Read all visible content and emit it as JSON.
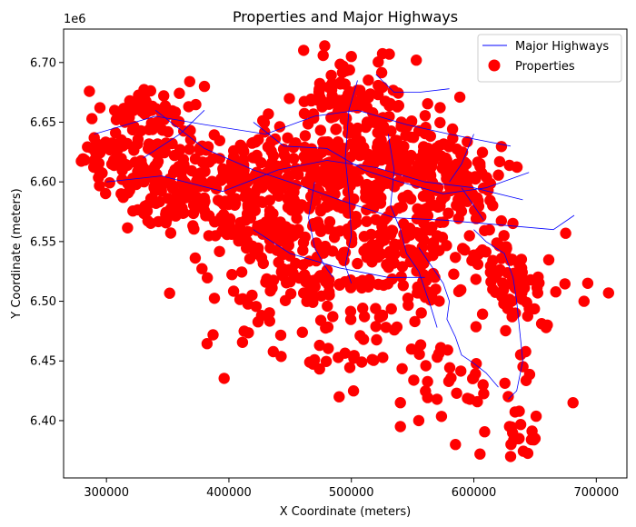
{
  "chart_data": {
    "type": "scatter",
    "title": "Properties and Major Highways",
    "xlabel": "X Coordinate (meters)",
    "ylabel": "Y Coordinate (meters)",
    "y_offset_label": "1e6",
    "xlim": [
      265000,
      725000
    ],
    "ylim": [
      6352000,
      6728000
    ],
    "x_ticks": [
      300000,
      400000,
      500000,
      600000,
      700000
    ],
    "x_tick_labels": [
      "300000",
      "400000",
      "500000",
      "600000",
      "700000"
    ],
    "y_ticks": [
      6400000,
      6450000,
      6500000,
      6550000,
      6600000,
      6650000,
      6700000
    ],
    "y_tick_labels": [
      "6.40",
      "6.45",
      "6.50",
      "6.55",
      "6.60",
      "6.65",
      "6.70"
    ],
    "grid": false,
    "legend_position": "top-right",
    "colors": {
      "properties": "#ff0000",
      "highways": "#0000ff"
    },
    "series": [
      {
        "name": "Major Highways",
        "kind": "line",
        "paths": [
          [
            [
              290000,
              6640000
            ],
            [
              340000,
              6655000
            ],
            [
              380000,
              6648000
            ],
            [
              430000,
              6640000
            ],
            [
              470000,
              6655000
            ],
            [
              505000,
              6660000
            ],
            [
              545000,
              6648000
            ],
            [
              580000,
              6640000
            ],
            [
              630000,
              6630000
            ]
          ],
          [
            [
              300000,
              6600000
            ],
            [
              345000,
              6605000
            ],
            [
              395000,
              6592000
            ],
            [
              440000,
              6610000
            ],
            [
              480000,
              6618000
            ],
            [
              520000,
              6612000
            ],
            [
              560000,
              6600000
            ],
            [
              600000,
              6595000
            ],
            [
              640000,
              6585000
            ]
          ],
          [
            [
              340000,
              6660000
            ],
            [
              380000,
              6628000
            ],
            [
              420000,
              6610000
            ],
            [
              455000,
              6598000
            ],
            [
              490000,
              6585000
            ],
            [
              535000,
              6570000
            ],
            [
              575000,
              6568000
            ],
            [
              610000,
              6565000
            ],
            [
              665000,
              6560000
            ],
            [
              682000,
              6572000
            ]
          ],
          [
            [
              420000,
              6650000
            ],
            [
              445000,
              6630000
            ],
            [
              480000,
              6628000
            ],
            [
              510000,
              6610000
            ],
            [
              540000,
              6600000
            ],
            [
              575000,
              6590000
            ],
            [
              610000,
              6595000
            ],
            [
              645000,
              6608000
            ]
          ],
          [
            [
              505000,
              6685000
            ],
            [
              498000,
              6660000
            ],
            [
              495000,
              6620000
            ],
            [
              498000,
              6590000
            ],
            [
              500000,
              6555000
            ],
            [
              495000,
              6530000
            ],
            [
              500000,
              6515000
            ]
          ],
          [
            [
              420000,
              6560000
            ],
            [
              450000,
              6540000
            ],
            [
              490000,
              6528000
            ],
            [
              530000,
              6520000
            ],
            [
              560000,
              6520000
            ]
          ],
          [
            [
              520000,
              6690000
            ],
            [
              535000,
              6675000
            ],
            [
              555000,
              6675000
            ],
            [
              580000,
              6678000
            ]
          ],
          [
            [
              530000,
              6640000
            ],
            [
              535000,
              6610000
            ],
            [
              532000,
              6580000
            ],
            [
              540000,
              6560000
            ],
            [
              545000,
              6540000
            ],
            [
              555000,
              6525000
            ],
            [
              560000,
              6510000
            ],
            [
              565000,
              6495000
            ],
            [
              570000,
              6478000
            ]
          ],
          [
            [
              555000,
              6545000
            ],
            [
              575000,
              6515000
            ],
            [
              580000,
              6500000
            ],
            [
              578000,
              6485000
            ],
            [
              585000,
              6470000
            ],
            [
              590000,
              6455000
            ],
            [
              600000,
              6448000
            ],
            [
              610000,
              6440000
            ],
            [
              620000,
              6428000
            ]
          ],
          [
            [
              600000,
              6560000
            ],
            [
              610000,
              6550000
            ],
            [
              625000,
              6540000
            ],
            [
              632000,
              6520000
            ],
            [
              635000,
              6500000
            ],
            [
              638000,
              6470000
            ],
            [
              640000,
              6450000
            ],
            [
              635000,
              6425000
            ],
            [
              628000,
              6418000
            ]
          ],
          [
            [
              590000,
              6595000
            ],
            [
              600000,
              6580000
            ],
            [
              608000,
              6568000
            ]
          ],
          [
            [
              470000,
              6600000
            ],
            [
              465000,
              6570000
            ],
            [
              470000,
              6545000
            ],
            [
              478000,
              6530000
            ],
            [
              485000,
              6520000
            ]
          ],
          [
            [
              380000,
              6660000
            ],
            [
              360000,
              6640000
            ],
            [
              330000,
              6620000
            ]
          ],
          [
            [
              600000,
              6640000
            ],
            [
              590000,
              6615000
            ],
            [
              580000,
              6600000
            ]
          ]
        ]
      },
      {
        "name": "Properties",
        "kind": "scatter",
        "blob_seed": 1337,
        "blob_counts": [
          [
            [
              300000,
              6620000,
              20000,
              20000
            ],
            40
          ],
          [
            [
              350000,
              6600000,
              40000,
              35000
            ],
            140
          ],
          [
            [
              420000,
              6600000,
              40000,
              35000
            ],
            150
          ],
          [
            [
              480000,
              6610000,
              35000,
              35000
            ],
            140
          ],
          [
            [
              540000,
              6615000,
              35000,
              35000
            ],
            130
          ],
          [
            [
              590000,
              6600000,
              30000,
              30000
            ],
            90
          ],
          [
            [
              330000,
              6660000,
              30000,
              18000
            ],
            60
          ],
          [
            [
              500000,
              6670000,
              40000,
              25000
            ],
            80
          ],
          [
            [
              430000,
              6560000,
              50000,
              25000
            ],
            90
          ],
          [
            [
              520000,
              6555000,
              40000,
              25000
            ],
            70
          ],
          [
            [
              470000,
              6520000,
              60000,
              20000
            ],
            70
          ],
          [
            [
              560000,
              6530000,
              30000,
              40000
            ],
            60
          ],
          [
            [
              620000,
              6540000,
              30000,
              40000
            ],
            45
          ],
          [
            [
              640000,
              6500000,
              35000,
              25000
            ],
            35
          ],
          [
            [
              520000,
              6470000,
              50000,
              40000
            ],
            50
          ],
          [
            [
              600000,
              6430000,
              40000,
              30000
            ],
            30
          ],
          [
            [
              640000,
              6390000,
              20000,
              20000
            ],
            15
          ],
          [
            [
              410000,
              6480000,
              30000,
              30000
            ],
            20
          ]
        ],
        "extra_points": [
          [
            290000,
            6637000
          ],
          [
            292000,
            6632000
          ],
          [
            315000,
            6650000
          ],
          [
            368000,
            6684000
          ],
          [
            531000,
            6707000
          ],
          [
            500000,
            6705000
          ],
          [
            553000,
            6702000
          ],
          [
            380000,
            6680000
          ],
          [
            466000,
            6449000
          ],
          [
            460000,
            6474000
          ],
          [
            490000,
            6420000
          ],
          [
            540000,
            6395000
          ],
          [
            585000,
            6380000
          ],
          [
            605000,
            6372000
          ],
          [
            630000,
            6370000
          ],
          [
            650000,
            6385000
          ],
          [
            681000,
            6415000
          ],
          [
            710000,
            6507000
          ],
          [
            693000,
            6515000
          ],
          [
            675000,
            6557000
          ],
          [
            690000,
            6500000
          ],
          [
            660000,
            6480000
          ],
          [
            540000,
            6415000
          ],
          [
            555000,
            6400000
          ]
        ]
      }
    ]
  }
}
